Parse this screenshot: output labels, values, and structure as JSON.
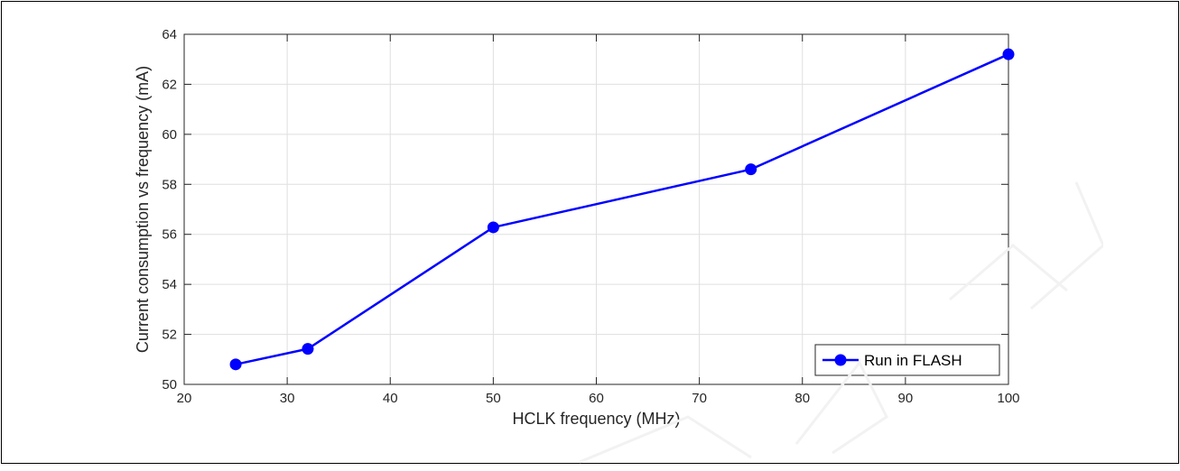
{
  "chart_data": {
    "type": "line",
    "title": "",
    "xlabel": "HCLK frequency (MHz)",
    "ylabel": "Current consumption vs frequency (mA)",
    "xlim": [
      20,
      100
    ],
    "ylim": [
      50,
      64
    ],
    "xticks": [
      "20",
      "30",
      "40",
      "50",
      "60",
      "70",
      "80",
      "90",
      "100"
    ],
    "yticks": [
      "50",
      "52",
      "54",
      "56",
      "58",
      "60",
      "62",
      "64"
    ],
    "grid": true,
    "legend_position": "bottom-right",
    "series": [
      {
        "name": "Run in FLASH",
        "color": "#0000ff",
        "marker": "circle",
        "x": [
          25,
          32,
          50,
          75,
          100
        ],
        "y": [
          50.8,
          51.42,
          56.28,
          58.6,
          63.2
        ]
      }
    ]
  }
}
